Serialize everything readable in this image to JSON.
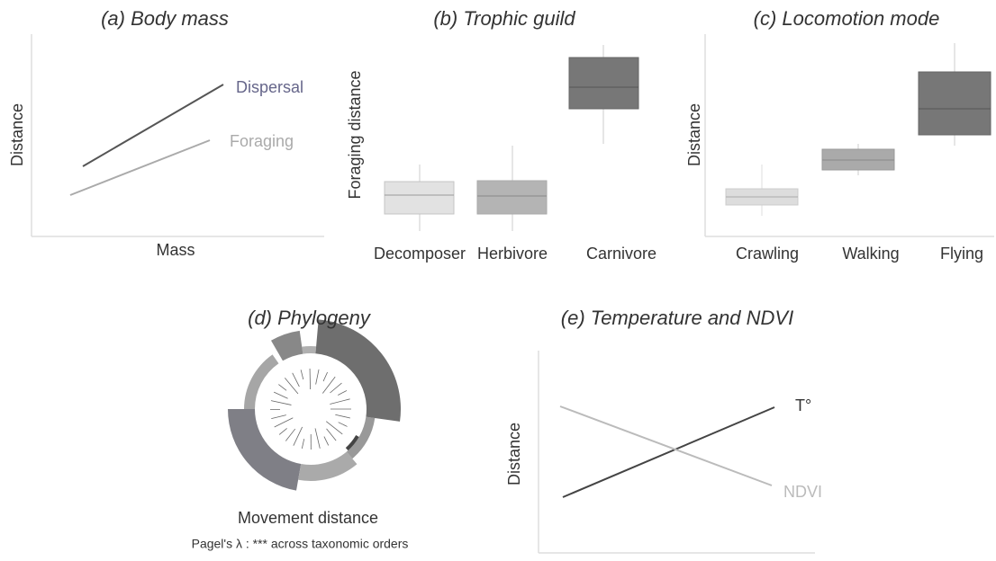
{
  "panels": [
    {
      "title": "(a) Body mass",
      "y_label": "Distance",
      "x_label": "Mass",
      "lines": [
        "Dispersal",
        "Foraging"
      ]
    },
    {
      "title": "(b) Trophic guild",
      "y_label": "Foraging distance",
      "categories": [
        "Decomposer",
        "Herbivore",
        "Carnivore"
      ]
    },
    {
      "title": "(c) Locomotion mode",
      "y_label": "Distance",
      "categories": [
        "Crawling",
        "Walking",
        "Flying"
      ]
    },
    {
      "title": "(d) Phylogeny",
      "caption": "Movement distance",
      "note": "Pagel's λ : *** across taxonomic orders"
    },
    {
      "title": "(e) Temperature and NDVI",
      "y_label": "Distance",
      "lines": [
        "T°",
        "NDVI"
      ]
    }
  ]
}
